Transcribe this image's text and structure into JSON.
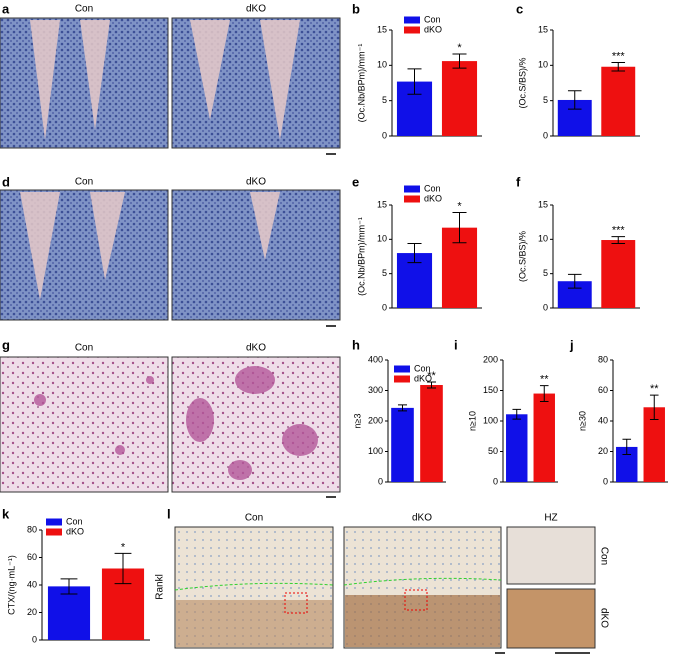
{
  "panels": [
    {
      "letter": "a",
      "captions": [
        "Con",
        "dKO"
      ]
    },
    {
      "letter": "d",
      "captions": [
        "Con",
        "dKO"
      ]
    },
    {
      "letter": "g",
      "captions": [
        "Con",
        "dKO"
      ]
    },
    {
      "letter": "l",
      "captions": [
        "Con",
        "dKO",
        "HZ",
        "Con",
        "dKO"
      ],
      "side_label": "Rankl"
    }
  ],
  "chart_data": [
    {
      "type": "bar",
      "panel_label": "b",
      "ylabel": "(Oc.Nb/BPm)/mm⁻¹",
      "ylim": [
        0,
        15
      ],
      "yticks": [
        0,
        5,
        10,
        15
      ],
      "annotation": "*",
      "series": [
        {
          "name": "Con",
          "color": "#1010e8",
          "values": [
            7.7
          ],
          "errors": [
            1.8
          ]
        },
        {
          "name": "dKO",
          "color": "#ee1010",
          "values": [
            10.6
          ],
          "errors": [
            1.0
          ]
        }
      ]
    },
    {
      "type": "bar",
      "panel_label": "c",
      "ylabel": "(Oc.S/BS)/%",
      "ylim": [
        0,
        15
      ],
      "yticks": [
        0,
        5,
        10,
        15
      ],
      "annotation": "***",
      "series": [
        {
          "color": "#1010e8",
          "values": [
            5.1
          ],
          "errors": [
            1.3
          ]
        },
        {
          "color": "#ee1010",
          "values": [
            9.8
          ],
          "errors": [
            0.6
          ]
        }
      ]
    },
    {
      "type": "bar",
      "panel_label": "e",
      "ylabel": "(Oc.Nb/BPm)/mm⁻¹",
      "ylim": [
        0,
        15
      ],
      "yticks": [
        0,
        5,
        10,
        15
      ],
      "annotation": "*",
      "series": [
        {
          "name": "Con",
          "color": "#1010e8",
          "values": [
            8.0
          ],
          "errors": [
            1.4
          ]
        },
        {
          "name": "dKO",
          "color": "#ee1010",
          "values": [
            11.7
          ],
          "errors": [
            2.2
          ]
        }
      ]
    },
    {
      "type": "bar",
      "panel_label": "f",
      "ylabel": "(Oc.S/BS)/%",
      "ylim": [
        0,
        15
      ],
      "yticks": [
        0,
        5,
        10,
        15
      ],
      "annotation": "***",
      "series": [
        {
          "color": "#1010e8",
          "values": [
            3.9
          ],
          "errors": [
            1.0
          ]
        },
        {
          "color": "#ee1010",
          "values": [
            9.9
          ],
          "errors": [
            0.5
          ]
        }
      ]
    },
    {
      "type": "bar",
      "panel_label": "h",
      "ylabel": "n≥3",
      "ylim": [
        0,
        400
      ],
      "yticks": [
        0,
        100,
        200,
        300,
        400
      ],
      "annotation": "**",
      "series": [
        {
          "name": "Con",
          "color": "#1010e8",
          "values": [
            243
          ],
          "errors": [
            10
          ]
        },
        {
          "name": "dKO",
          "color": "#ee1010",
          "values": [
            318
          ],
          "errors": [
            10
          ]
        }
      ]
    },
    {
      "type": "bar",
      "panel_label": "i",
      "ylabel": "n≥10",
      "ylim": [
        0,
        200
      ],
      "yticks": [
        0,
        50,
        100,
        150,
        200
      ],
      "annotation": "**",
      "series": [
        {
          "color": "#1010e8",
          "values": [
            111
          ],
          "errors": [
            8
          ]
        },
        {
          "color": "#ee1010",
          "values": [
            145
          ],
          "errors": [
            13
          ]
        }
      ]
    },
    {
      "type": "bar",
      "panel_label": "j",
      "ylabel": "n≥30",
      "ylim": [
        0,
        80
      ],
      "yticks": [
        0,
        20,
        40,
        60,
        80
      ],
      "annotation": "**",
      "series": [
        {
          "color": "#1010e8",
          "values": [
            23
          ],
          "errors": [
            5
          ]
        },
        {
          "color": "#ee1010",
          "values": [
            49
          ],
          "errors": [
            8
          ]
        }
      ]
    },
    {
      "type": "bar",
      "panel_label": "k",
      "ylabel": "CTX/(ng·mL⁻¹)",
      "ylim": [
        0,
        80
      ],
      "yticks": [
        0,
        20,
        40,
        60,
        80
      ],
      "annotation": "*",
      "series": [
        {
          "name": "Con",
          "color": "#1010e8",
          "values": [
            39
          ],
          "errors": [
            5.5
          ]
        },
        {
          "name": "dKO",
          "color": "#ee1010",
          "values": [
            52
          ],
          "errors": [
            11
          ]
        }
      ]
    }
  ]
}
